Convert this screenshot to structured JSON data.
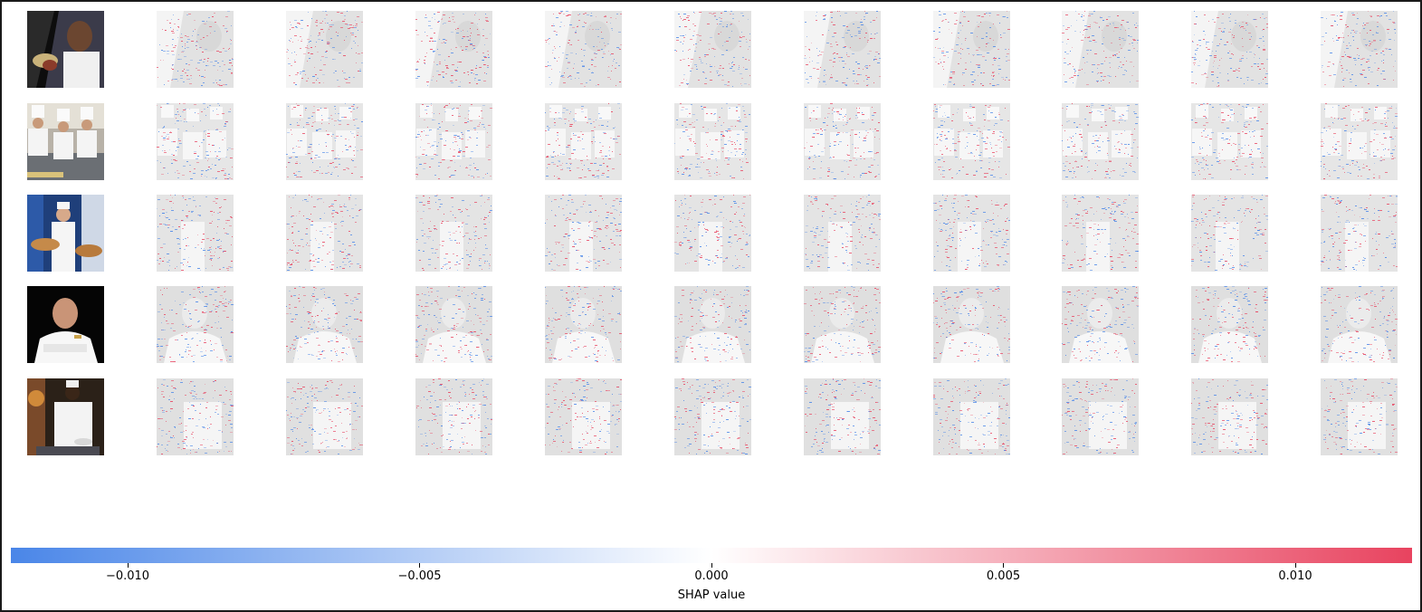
{
  "chart_data": {
    "type": "heatmap",
    "kind": "shap-image-plot",
    "rows": 5,
    "output_columns": 10,
    "row_subjects": [
      "person in dark clothing holding plate, dark background",
      "group of chefs in white hats in kitchen",
      "chef with trays of bread",
      "chef with crossed arms on black background",
      "chef in white jacket plating food"
    ],
    "colorbar": {
      "label": "SHAP value",
      "min": -0.012,
      "max": 0.012,
      "ticks": [
        -0.01,
        -0.005,
        0.0,
        0.005,
        0.01
      ],
      "tick_labels": [
        "−0.010",
        "−0.005",
        "0.000",
        "0.005",
        "0.010"
      ],
      "negative_color": "#4a86e8",
      "zero_color": "#ffffff",
      "positive_color": "#e8435f"
    }
  },
  "colors": {
    "overlay_gray": "#d8d8d8",
    "frame": "#1a1a1a"
  }
}
